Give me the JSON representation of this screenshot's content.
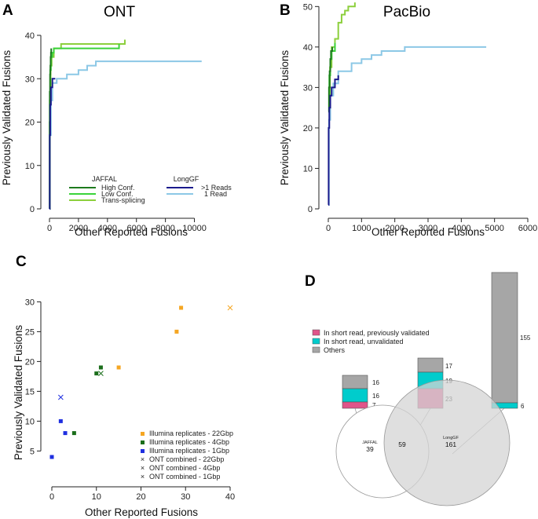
{
  "chart_data": [
    {
      "panel": "A",
      "title": "ONT",
      "type": "line",
      "xlabel": "Other Reported Fusions",
      "ylabel": "Previously Validated Fusions",
      "xlim": [
        0,
        11000
      ],
      "ylim": [
        0,
        40
      ],
      "xticks": [
        "0",
        "2000",
        "4000",
        "6000",
        "8000",
        "10000"
      ],
      "yticks": [
        "0",
        "10",
        "20",
        "30",
        "40"
      ],
      "legend": {
        "groups": [
          {
            "title": "JAFFAL",
            "entries": [
              "High Conf.",
              "Low Conf.",
              "Trans-splicing"
            ]
          },
          {
            "title": "LongGF",
            "entries": [
              ">1 Reads",
              "1 Read"
            ]
          }
        ]
      },
      "series": [
        {
          "name": "High Conf.",
          "color": "#1e7a1e",
          "x": [
            0,
            10,
            20,
            40,
            60,
            80,
            100,
            120
          ],
          "y": [
            0,
            20,
            27,
            31,
            33,
            35,
            36,
            37
          ]
        },
        {
          "name": "Low Conf.",
          "color": "#3ad33a",
          "x": [
            0,
            20,
            50,
            100,
            200,
            300,
            800,
            4800
          ],
          "y": [
            0,
            25,
            32,
            35,
            36,
            37,
            37,
            38
          ]
        },
        {
          "name": "Trans-splicing",
          "color": "#8ccf3c",
          "x": [
            0,
            30,
            80,
            150,
            300,
            800,
            1500,
            3000,
            5000,
            5200
          ],
          "y": [
            0,
            27,
            33,
            35,
            37,
            38,
            38,
            38,
            38,
            39
          ]
        },
        {
          "name": ">1 Reads",
          "color": "#1a1a8c",
          "x": [
            0,
            20,
            50,
            100,
            200,
            400
          ],
          "y": [
            0,
            17,
            24,
            28,
            30,
            30
          ]
        },
        {
          "name": "1 Read",
          "color": "#8cc8e6",
          "x": [
            0,
            30,
            100,
            200,
            500,
            1000,
            1200,
            1600,
            2000,
            2300,
            2600,
            3000,
            3200,
            10500
          ],
          "y": [
            0,
            17,
            25,
            29,
            30,
            30,
            31,
            31,
            32,
            32,
            33,
            33,
            34,
            34
          ]
        }
      ]
    },
    {
      "panel": "B",
      "title": "PacBio",
      "type": "line",
      "xlabel": "Other Reported Fusions",
      "ylabel": "Previously Validated Fusions",
      "xlim": [
        0,
        6000
      ],
      "ylim": [
        0,
        52
      ],
      "xticks": [
        "0",
        "1000",
        "2000",
        "3000",
        "4000",
        "5000",
        "6000"
      ],
      "yticks": [
        "0",
        "10",
        "20",
        "30",
        "40",
        "50"
      ],
      "series": [
        {
          "name": "High Conf.",
          "color": "#1e7a1e",
          "x": [
            0,
            20,
            40,
            60,
            80,
            120
          ],
          "y": [
            24,
            30,
            34,
            37,
            39,
            40
          ]
        },
        {
          "name": "Low Conf.",
          "color": "#3ad33a",
          "x": [
            0,
            30,
            60,
            100,
            200
          ],
          "y": [
            26,
            33,
            37,
            39,
            41
          ]
        },
        {
          "name": "Trans-splicing",
          "color": "#8ccf3c",
          "x": [
            0,
            50,
            100,
            200,
            300,
            400,
            500,
            600,
            700,
            800
          ],
          "y": [
            26,
            35,
            40,
            42,
            46,
            48,
            49,
            50,
            50,
            51
          ]
        },
        {
          "name": ">1 Reads",
          "color": "#1a1a8c",
          "x": [
            0,
            10,
            30,
            60,
            100,
            200,
            300
          ],
          "y": [
            1,
            20,
            25,
            28,
            30,
            32,
            33
          ]
        },
        {
          "name": "1 Read",
          "color": "#8cc8e6",
          "x": [
            0,
            20,
            60,
            150,
            300,
            700,
            1000,
            1300,
            1600,
            2300,
            4750
          ],
          "y": [
            1,
            22,
            28,
            31,
            34,
            36,
            37,
            38,
            39,
            40,
            40
          ]
        }
      ]
    },
    {
      "panel": "C",
      "type": "scatter",
      "xlabel": "Other Reported Fusions",
      "ylabel": "Previously Validated Fusions",
      "xlim": [
        0,
        40
      ],
      "ylim": [
        3,
        30
      ],
      "xticks": [
        "0",
        "10",
        "20",
        "30",
        "40"
      ],
      "yticks": [
        "5",
        "10",
        "15",
        "20",
        "25",
        "30"
      ],
      "series": [
        {
          "name": "Illumina replicates - 22Gbp",
          "marker": "square",
          "color": "#f5a623",
          "points": [
            [
              15,
              19
            ],
            [
              28,
              25
            ],
            [
              29,
              29
            ]
          ]
        },
        {
          "name": "Illumina replicates - 4Gbp",
          "marker": "square",
          "color": "#1b6e1b",
          "points": [
            [
              5,
              8
            ],
            [
              10,
              18
            ],
            [
              11,
              19
            ]
          ]
        },
        {
          "name": "Illumina replicates - 1Gbp",
          "marker": "square",
          "color": "#1f2fe0",
          "points": [
            [
              0,
              4
            ],
            [
              2,
              10
            ],
            [
              3,
              8
            ]
          ]
        },
        {
          "name": "ONT combined - 22Gbp",
          "marker": "x",
          "color": "#f5a623",
          "points": [
            [
              40,
              29
            ]
          ]
        },
        {
          "name": "ONT combined - 4Gbp",
          "marker": "x",
          "color": "#1b6e1b",
          "points": [
            [
              11,
              18
            ]
          ]
        },
        {
          "name": "ONT combined - 1Gbp",
          "marker": "x",
          "color": "#1f2fe0",
          "points": [
            [
              2,
              14
            ]
          ]
        }
      ]
    },
    {
      "panel": "D",
      "type": "venn",
      "legend": [
        {
          "label": "In short read, previously validated",
          "color": "#e0558a"
        },
        {
          "label": "In short read, unvalidated",
          "color": "#00cccc"
        },
        {
          "label": "Others",
          "color": "#a6a6a6"
        }
      ],
      "venn": {
        "left_label": "JAFFAL",
        "left_only": "39",
        "overlap": "59",
        "right_label": "LongGF",
        "right_only": "161"
      },
      "bars": [
        {
          "region": "JAFFAL only",
          "validated": "7",
          "unvalidated": "16",
          "others": "16"
        },
        {
          "region": "Overlap",
          "validated": "23",
          "unvalidated": "19",
          "others": "17"
        },
        {
          "region": "LongGF only",
          "validated": "",
          "unvalidated": "6",
          "others": "155"
        }
      ]
    }
  ]
}
